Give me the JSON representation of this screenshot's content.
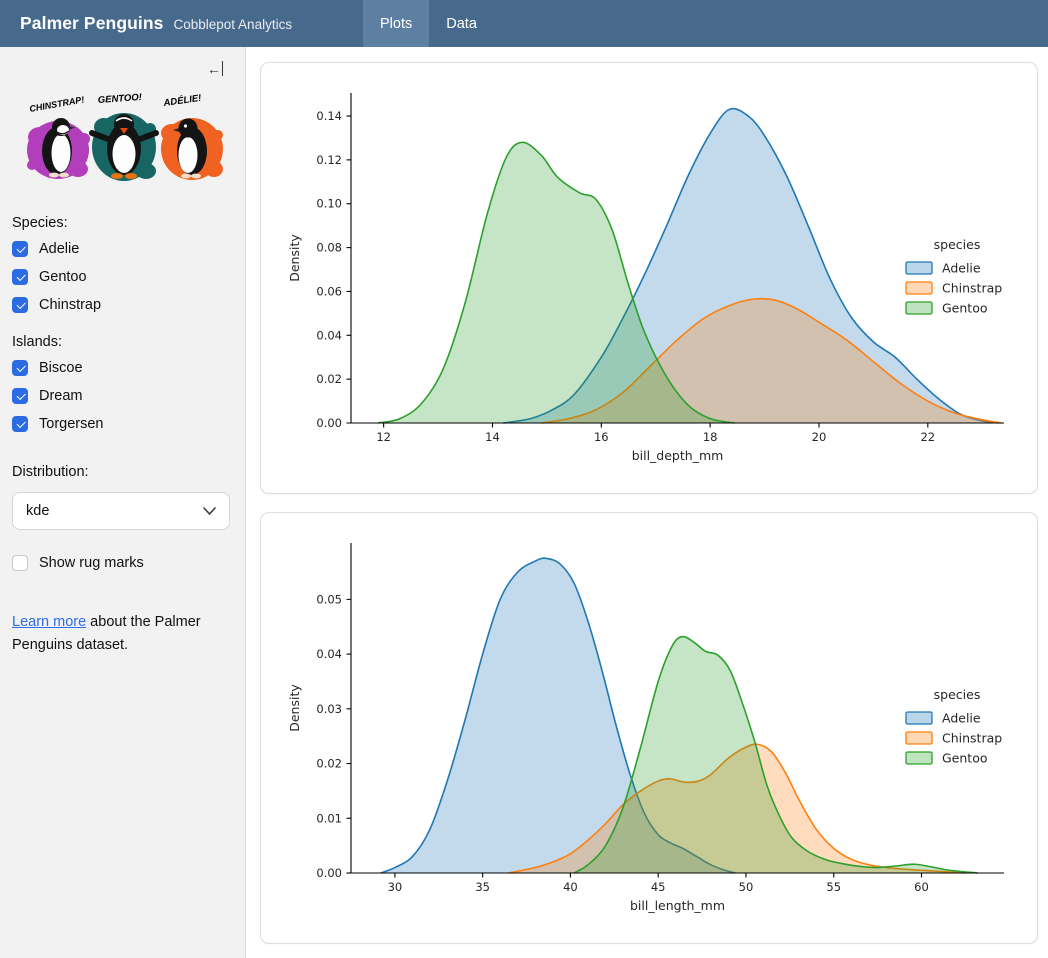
{
  "header": {
    "title": "Palmer Penguins",
    "subtitle": "Cobblepot Analytics",
    "tabs": [
      {
        "label": "Plots",
        "active": true
      },
      {
        "label": "Data",
        "active": false
      }
    ]
  },
  "sidebar": {
    "logo_labels": [
      "CHINSTRAP!",
      "GENTOO!",
      "ADÉLIE!"
    ],
    "logo_colors": [
      "#b23ebc",
      "#176663",
      "#ef6221"
    ],
    "species_label": "Species:",
    "species_options": [
      {
        "label": "Adelie",
        "checked": true
      },
      {
        "label": "Gentoo",
        "checked": true
      },
      {
        "label": "Chinstrap",
        "checked": true
      }
    ],
    "islands_label": "Islands:",
    "islands_options": [
      {
        "label": "Biscoe",
        "checked": true
      },
      {
        "label": "Dream",
        "checked": true
      },
      {
        "label": "Torgersen",
        "checked": true
      }
    ],
    "distribution_label": "Distribution:",
    "distribution_value": "kde",
    "rug": {
      "label": "Show rug marks",
      "checked": false
    },
    "learn_more_link": "Learn more",
    "learn_more_text": " about the Palmer Penguins dataset."
  },
  "colors": {
    "navbar": "#476a8c",
    "navbar_active_tab": "#5d80a2",
    "checkbox_checked": "#2b6be4",
    "link": "#2f6de8",
    "adelie": "#1f77b4",
    "chinstrap": "#ff7f0e",
    "gentoo": "#2ca02c"
  },
  "chart_data": [
    {
      "type": "area",
      "subtype": "kde",
      "xlabel": "bill_depth_mm",
      "ylabel": "Density",
      "xlim": [
        11.4,
        23.4
      ],
      "ylim": [
        0,
        0.1505
      ],
      "xticks": [
        12,
        14,
        16,
        18,
        20,
        22
      ],
      "yticks": [
        0.0,
        0.02,
        0.04,
        0.06,
        0.08,
        0.1,
        0.12,
        0.14
      ],
      "ytick_decimals": 2,
      "grid": false,
      "legend": {
        "title": "species",
        "position": "right",
        "entries": [
          "Adelie",
          "Chinstrap",
          "Gentoo"
        ]
      },
      "series": [
        {
          "name": "Adelie",
          "color": "#1f77b4",
          "points": [
            [
              14.2,
              0
            ],
            [
              14.7,
              0.002
            ],
            [
              15.1,
              0.006
            ],
            [
              15.5,
              0.013
            ],
            [
              16.0,
              0.03
            ],
            [
              16.4,
              0.048
            ],
            [
              16.8,
              0.068
            ],
            [
              17.2,
              0.09
            ],
            [
              17.6,
              0.113
            ],
            [
              18.0,
              0.132
            ],
            [
              18.35,
              0.143
            ],
            [
              18.7,
              0.14
            ],
            [
              19.0,
              0.131
            ],
            [
              19.4,
              0.113
            ],
            [
              19.8,
              0.09
            ],
            [
              20.2,
              0.066
            ],
            [
              20.6,
              0.048
            ],
            [
              21.0,
              0.037
            ],
            [
              21.4,
              0.03
            ],
            [
              21.8,
              0.02
            ],
            [
              22.2,
              0.011
            ],
            [
              22.6,
              0.004
            ],
            [
              23.0,
              0.001
            ],
            [
              23.3,
              0
            ]
          ]
        },
        {
          "name": "Chinstrap",
          "color": "#ff7f0e",
          "points": [
            [
              14.9,
              0
            ],
            [
              15.4,
              0.002
            ],
            [
              15.9,
              0.006
            ],
            [
              16.4,
              0.014
            ],
            [
              16.9,
              0.026
            ],
            [
              17.4,
              0.038
            ],
            [
              17.9,
              0.048
            ],
            [
              18.4,
              0.054
            ],
            [
              18.8,
              0.0565
            ],
            [
              19.2,
              0.056
            ],
            [
              19.6,
              0.052
            ],
            [
              20.0,
              0.046
            ],
            [
              20.5,
              0.038
            ],
            [
              21.0,
              0.028
            ],
            [
              21.5,
              0.018
            ],
            [
              22.0,
              0.01
            ],
            [
              22.5,
              0.0045
            ],
            [
              23.0,
              0.0015
            ],
            [
              23.35,
              0
            ]
          ]
        },
        {
          "name": "Gentoo",
          "color": "#2ca02c",
          "points": [
            [
              11.9,
              0
            ],
            [
              12.3,
              0.002
            ],
            [
              12.7,
              0.009
            ],
            [
              13.1,
              0.025
            ],
            [
              13.5,
              0.055
            ],
            [
              13.9,
              0.095
            ],
            [
              14.25,
              0.121
            ],
            [
              14.55,
              0.128
            ],
            [
              14.9,
              0.122
            ],
            [
              15.2,
              0.112
            ],
            [
              15.6,
              0.105
            ],
            [
              15.9,
              0.102
            ],
            [
              16.2,
              0.088
            ],
            [
              16.5,
              0.063
            ],
            [
              16.8,
              0.041
            ],
            [
              17.2,
              0.021
            ],
            [
              17.6,
              0.008
            ],
            [
              18.0,
              0.002
            ],
            [
              18.45,
              0
            ]
          ]
        }
      ]
    },
    {
      "type": "area",
      "subtype": "kde",
      "xlabel": "bill_length_mm",
      "ylabel": "Density",
      "xlim": [
        27.5,
        64.7
      ],
      "ylim": [
        0,
        0.0603
      ],
      "xticks": [
        30,
        35,
        40,
        45,
        50,
        55,
        60
      ],
      "yticks": [
        0.0,
        0.01,
        0.02,
        0.03,
        0.04,
        0.05
      ],
      "ytick_decimals": 2,
      "grid": false,
      "legend": {
        "title": "species",
        "position": "right",
        "entries": [
          "Adelie",
          "Chinstrap",
          "Gentoo"
        ]
      },
      "series": [
        {
          "name": "Adelie",
          "color": "#1f77b4",
          "points": [
            [
              29.2,
              0
            ],
            [
              30,
              0.001
            ],
            [
              31,
              0.003
            ],
            [
              32,
              0.008
            ],
            [
              33,
              0.017
            ],
            [
              34,
              0.028
            ],
            [
              35,
              0.04
            ],
            [
              36,
              0.05
            ],
            [
              37,
              0.055
            ],
            [
              38,
              0.057
            ],
            [
              38.6,
              0.0575
            ],
            [
              39.4,
              0.0565
            ],
            [
              40.2,
              0.053
            ],
            [
              41,
              0.046
            ],
            [
              41.8,
              0.037
            ],
            [
              42.6,
              0.027
            ],
            [
              43.4,
              0.018
            ],
            [
              44.2,
              0.011
            ],
            [
              45,
              0.007
            ],
            [
              45.7,
              0.0055
            ],
            [
              46.4,
              0.0045
            ],
            [
              47.2,
              0.003
            ],
            [
              48,
              0.0015
            ],
            [
              48.8,
              0.0005
            ],
            [
              49.4,
              0
            ]
          ]
        },
        {
          "name": "Chinstrap",
          "color": "#ff7f0e",
          "points": [
            [
              36.5,
              0
            ],
            [
              38,
              0.001
            ],
            [
              39,
              0.002
            ],
            [
              40,
              0.0035
            ],
            [
              41,
              0.006
            ],
            [
              42,
              0.009
            ],
            [
              43,
              0.0125
            ],
            [
              44,
              0.015
            ],
            [
              45,
              0.0168
            ],
            [
              45.7,
              0.0172
            ],
            [
              46.5,
              0.0166
            ],
            [
              47.3,
              0.0168
            ],
            [
              48,
              0.018
            ],
            [
              49,
              0.021
            ],
            [
              50,
              0.023
            ],
            [
              50.7,
              0.0235
            ],
            [
              51.5,
              0.022
            ],
            [
              52.3,
              0.018
            ],
            [
              53,
              0.0135
            ],
            [
              54,
              0.008
            ],
            [
              55,
              0.0045
            ],
            [
              56,
              0.0025
            ],
            [
              57,
              0.0015
            ],
            [
              58,
              0.001
            ],
            [
              59,
              0.0007
            ],
            [
              60,
              0.0005
            ],
            [
              61,
              0.0003
            ],
            [
              62.5,
              0
            ]
          ]
        },
        {
          "name": "Gentoo",
          "color": "#2ca02c",
          "points": [
            [
              40.2,
              0
            ],
            [
              41,
              0.0015
            ],
            [
              42,
              0.005
            ],
            [
              43,
              0.012
            ],
            [
              44,
              0.023
            ],
            [
              45,
              0.035
            ],
            [
              45.8,
              0.0415
            ],
            [
              46.4,
              0.0432
            ],
            [
              47.1,
              0.042
            ],
            [
              47.7,
              0.0405
            ],
            [
              48.4,
              0.0398
            ],
            [
              49.1,
              0.037
            ],
            [
              49.8,
              0.031
            ],
            [
              50.5,
              0.024
            ],
            [
              51.2,
              0.016
            ],
            [
              51.9,
              0.0105
            ],
            [
              52.6,
              0.0065
            ],
            [
              53.5,
              0.004
            ],
            [
              54.5,
              0.0025
            ],
            [
              55.5,
              0.0017
            ],
            [
              56.5,
              0.0012
            ],
            [
              57.5,
              0.001
            ],
            [
              58.6,
              0.0013
            ],
            [
              59.6,
              0.0016
            ],
            [
              60.6,
              0.0011
            ],
            [
              61.6,
              0.0005
            ],
            [
              63.2,
              0
            ]
          ]
        }
      ]
    }
  ]
}
